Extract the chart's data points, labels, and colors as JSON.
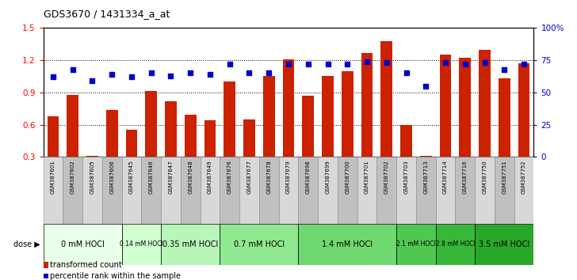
{
  "title": "GDS3670 / 1431334_a_at",
  "samples": [
    "GSM387601",
    "GSM387602",
    "GSM387605",
    "GSM387606",
    "GSM387645",
    "GSM387646",
    "GSM387647",
    "GSM387648",
    "GSM387649",
    "GSM387676",
    "GSM387677",
    "GSM387678",
    "GSM387679",
    "GSM387698",
    "GSM387699",
    "GSM387700",
    "GSM387701",
    "GSM387702",
    "GSM387703",
    "GSM387713",
    "GSM387714",
    "GSM387716",
    "GSM387750",
    "GSM387751",
    "GSM387752"
  ],
  "red_values": [
    0.68,
    0.88,
    0.31,
    0.74,
    0.55,
    0.91,
    0.82,
    0.69,
    0.64,
    1.0,
    0.65,
    1.05,
    1.21,
    0.87,
    1.05,
    1.1,
    1.27,
    1.38,
    0.6,
    0.31,
    1.25,
    1.22,
    1.3,
    1.03,
    1.17
  ],
  "blue_values": [
    62,
    68,
    59,
    64,
    62,
    65,
    63,
    65,
    64,
    72,
    65,
    65,
    72,
    72,
    72,
    72,
    74,
    73,
    65,
    55,
    73,
    72,
    73,
    68,
    72
  ],
  "dose_groups": [
    {
      "label": "0 mM HOCl",
      "start": 0,
      "end": 4,
      "color": "#e8ffe8"
    },
    {
      "label": "0.14 mM HOCl",
      "start": 4,
      "end": 6,
      "color": "#d0ffd0"
    },
    {
      "label": "0.35 mM HOCl",
      "start": 6,
      "end": 9,
      "color": "#b8f5b8"
    },
    {
      "label": "0.7 mM HOCl",
      "start": 9,
      "end": 13,
      "color": "#90e890"
    },
    {
      "label": "1.4 mM HOCl",
      "start": 13,
      "end": 18,
      "color": "#70d870"
    },
    {
      "label": "2.1 mM HOCl",
      "start": 18,
      "end": 20,
      "color": "#50c850"
    },
    {
      "label": "2.8 mM HOCl",
      "start": 20,
      "end": 22,
      "color": "#38b838"
    },
    {
      "label": "3.5 mM HOCl",
      "start": 22,
      "end": 25,
      "color": "#28a828"
    }
  ],
  "ylim_left": [
    0.3,
    1.5
  ],
  "ylim_right": [
    0,
    100
  ],
  "yticks_left": [
    0.3,
    0.6,
    0.9,
    1.2,
    1.5
  ],
  "yticks_right": [
    0,
    25,
    50,
    75,
    100
  ],
  "bar_color": "#cc2200",
  "dot_color": "#0000cc",
  "bar_bottom": 0.3,
  "legend_items": [
    "transformed count",
    "percentile rank within the sample"
  ],
  "dose_label": "dose",
  "sample_bg_odd": "#d8d8d8",
  "sample_bg_even": "#c0c0c0"
}
